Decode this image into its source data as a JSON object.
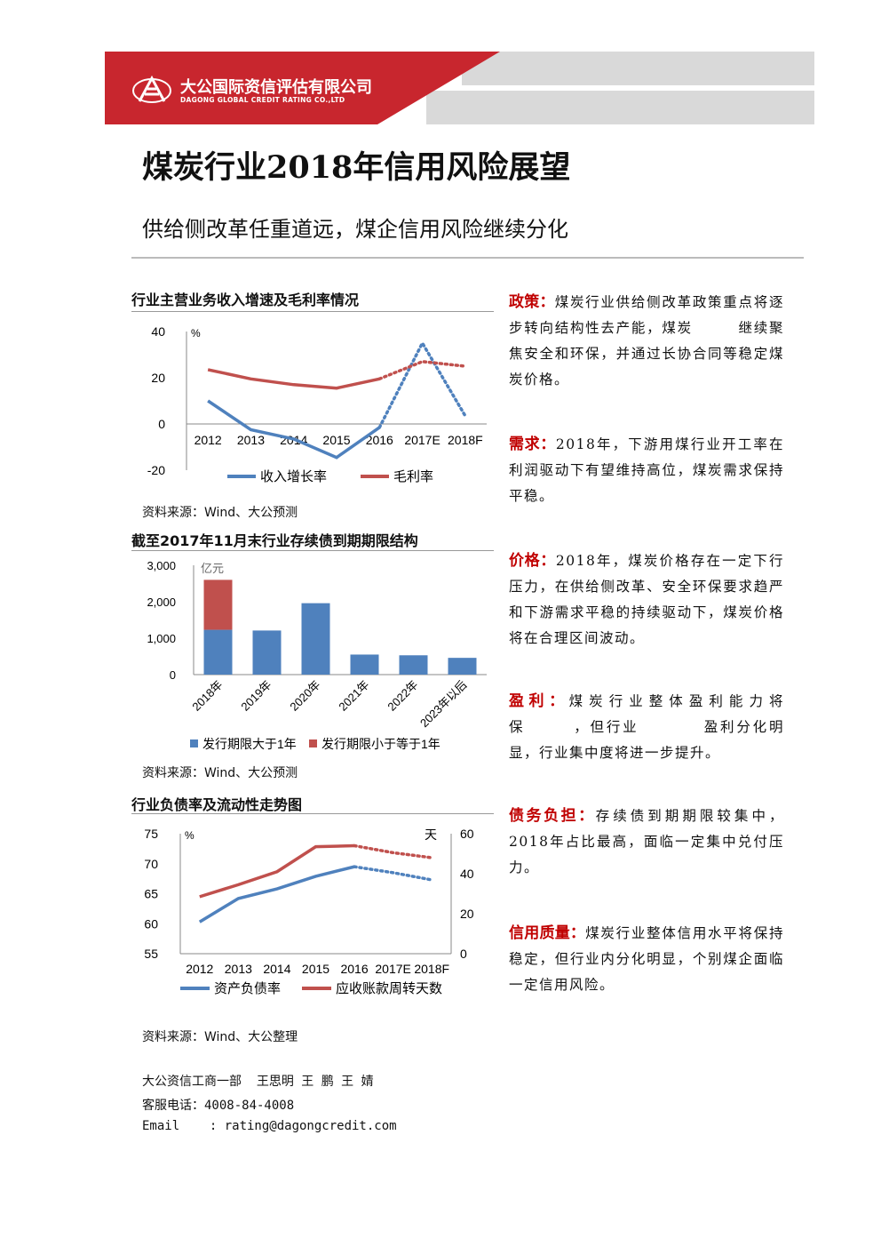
{
  "header": {
    "company_cn": "大公国际资信评估有限公司",
    "company_en": "DAGONG GLOBAL CREDIT RATING CO.,LTD",
    "brand_color": "#c8262e"
  },
  "title": "煤炭行业2018年信用风险展望",
  "subtitle": "供给侧改革任重道远，煤企信用风险继续分化",
  "chart1": {
    "title": "行业主营业务收入增速及毛利率情况",
    "source": "资料来源：Wind、大公预测",
    "unit": "%",
    "legend": [
      "收入增长率",
      "毛利率"
    ],
    "chart_data": {
      "type": "line",
      "x": [
        "2012",
        "2013",
        "2014",
        "2015",
        "2016",
        "2017E",
        "2018F"
      ],
      "yticks": [
        "40",
        "20",
        "0",
        "-20"
      ],
      "ylim": [
        -20,
        40
      ],
      "series": [
        {
          "name": "收入增长率",
          "color": "#4f81bd",
          "values": [
            10,
            -2.5,
            -6.5,
            -14.5,
            -1.5,
            35,
            3.5
          ],
          "forecast_from": 4
        },
        {
          "name": "毛利率",
          "color": "#c0504d",
          "values": [
            23.5,
            19.5,
            17,
            15.5,
            19.5,
            27,
            25
          ],
          "forecast_from": 4
        }
      ]
    }
  },
  "chart2": {
    "title": "截至2017年11月末行业存续债到期期限结构",
    "source": "资料来源：Wind、大公预测",
    "unit": "亿元",
    "legend": [
      "发行期限大于1年",
      "发行期限小于等于1年"
    ],
    "chart_data": {
      "type": "bar",
      "stacked": true,
      "categories": [
        "2018年",
        "2019年",
        "2020年",
        "2021年",
        "2022年",
        "2023年以后"
      ],
      "yticks": [
        "3,000",
        "2,000",
        "1,000",
        "0"
      ],
      "ylim": [
        0,
        3000
      ],
      "series": [
        {
          "name": "发行期限大于1年",
          "color": "#4f81bd",
          "values": [
            1230,
            1210,
            1960,
            550,
            530,
            460
          ]
        },
        {
          "name": "发行期限小于等于1年",
          "color": "#c0504d",
          "values": [
            1370,
            0,
            0,
            0,
            0,
            0
          ]
        }
      ]
    }
  },
  "chart3": {
    "title": "行业负债率及流动性走势图",
    "source": "资料来源：Wind、大公整理",
    "unit_left": "%",
    "unit_right": "天",
    "legend": [
      "资产负债率",
      "应收账款周转天数"
    ],
    "chart_data": {
      "type": "line",
      "x": [
        "2012",
        "2013",
        "2014",
        "2015",
        "2016",
        "2017E",
        "2018F"
      ],
      "yticks_left": [
        "75",
        "70",
        "65",
        "60",
        "55"
      ],
      "ylim_left": [
        55,
        75
      ],
      "yticks_right": [
        "60",
        "40",
        "20",
        "0"
      ],
      "ylim_right": [
        0,
        60
      ],
      "series": [
        {
          "name": "资产负债率",
          "axis": "left",
          "color": "#4f81bd",
          "values": [
            60.3,
            64.2,
            65.8,
            67.9,
            69.5,
            68.5,
            67.3
          ],
          "forecast_from": 4
        },
        {
          "name": "应收账款周转天数",
          "axis": "right",
          "color": "#c0504d",
          "values": [
            28.5,
            34.5,
            41,
            53.5,
            54,
            50.5,
            48
          ],
          "forecast_from": 4
        }
      ]
    }
  },
  "sections": [
    {
      "label": "政策：",
      "text": "煤炭行业供给侧改革政策重点将逐步转向结构性去产能，煤炭　　　继续聚焦安全和环保，并通过长协合同等稳定煤炭价格。"
    },
    {
      "label": "需求：",
      "text": "2018年，下游用煤行业开工率在利润驱动下有望维持高位，煤炭需求保持平稳。"
    },
    {
      "label": "价格：",
      "text": "2018年，煤炭价格存在一定下行压力，在供给侧改革、安全环保要求趋严和下游需求平稳的持续驱动下，煤炭价格将在合理区间波动。"
    },
    {
      "label": "盈利：",
      "text": "煤炭行业整体盈利能力将保　　　，但行业　　　　盈利分化明显，行业集中度将进一步提升。"
    },
    {
      "label": "债务负担：",
      "text": "存续债到期期限较集中，2018年占比最高，面临一定集中兑付压力。"
    },
    {
      "label": "信用质量：",
      "text": "煤炭行业整体信用水平将保持稳定，但行业内分化明显，个别煤企面临一定信用风险。"
    }
  ],
  "footer": {
    "authors": "大公资信工商一部  王思明 王 鹏 王 婧",
    "phone": "客服电话：4008-84-4008",
    "email": "Email    : rating@dagongcredit.com"
  }
}
